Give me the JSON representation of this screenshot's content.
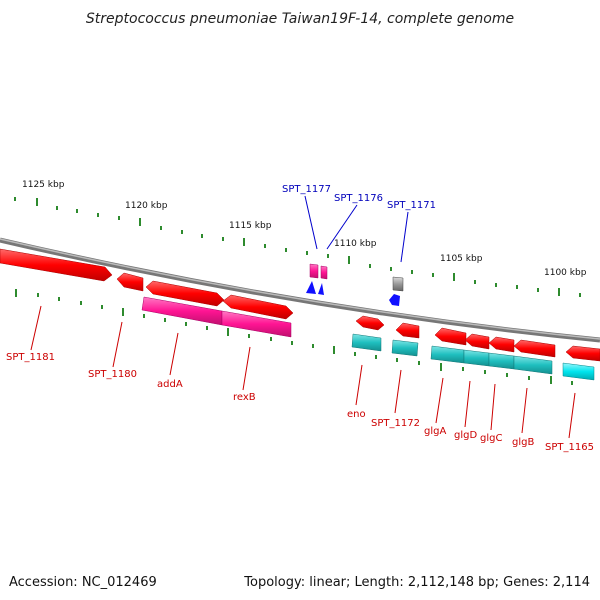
{
  "title": "Streptococcus pneumoniae Taiwan19F-14, complete genome",
  "footer": {
    "accession": "Accession: NC_012469",
    "topology": "Topology: linear; Length: 2,112,148 bp; Genes: 2,114"
  },
  "scale_labels": [
    "1125 kbp",
    "1120 kbp",
    "1115 kbp",
    "1110 kbp",
    "1105 kbp",
    "1100 kbp"
  ],
  "colors": {
    "backbone": "#888888",
    "tick": "#2e8b2e",
    "red_gene": "#ff1010",
    "magenta_gene": "#ff1493",
    "cyan_gene": "#1fbfbf",
    "bright_cyan_gene": "#00e5ee",
    "blue_gene": "#1010ff",
    "gray_gene": "#666666",
    "red_label": "#cc0000",
    "blue_label": "#0000bb"
  },
  "gene_labels": [
    {
      "text": "SPT_1177",
      "color": "blue"
    },
    {
      "text": "SPT_1176",
      "color": "blue"
    },
    {
      "text": "SPT_1171",
      "color": "blue"
    },
    {
      "text": "SPT_1181",
      "color": "red"
    },
    {
      "text": "SPT_1180",
      "color": "red"
    },
    {
      "text": "addA",
      "color": "red"
    },
    {
      "text": "rexB",
      "color": "red"
    },
    {
      "text": "eno",
      "color": "red"
    },
    {
      "text": "SPT_1172",
      "color": "red"
    },
    {
      "text": "glgA",
      "color": "red"
    },
    {
      "text": "glgD",
      "color": "red"
    },
    {
      "text": "glgC",
      "color": "red"
    },
    {
      "text": "glgB",
      "color": "red"
    },
    {
      "text": "SPT_1165",
      "color": "red"
    }
  ]
}
